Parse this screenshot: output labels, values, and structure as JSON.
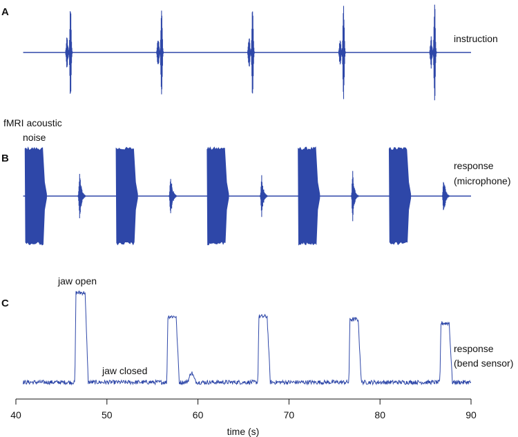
{
  "chart_data": [
    {
      "panel": "A",
      "type": "line",
      "annotations": [
        "instruction"
      ],
      "bursts": [
        {
          "t": 46.0,
          "amplitude": 1.0
        },
        {
          "t": 56.0,
          "amplitude": 1.0
        },
        {
          "t": 66.0,
          "amplitude": 1.0
        },
        {
          "t": 76.0,
          "amplitude": 1.0
        },
        {
          "t": 86.0,
          "amplitude": 1.0
        }
      ],
      "color": "#2e47a8"
    },
    {
      "panel": "B",
      "type": "line",
      "annotations": [
        "fMRI acoustic",
        "noise",
        "response",
        "(microphone)"
      ],
      "noise_blocks": [
        {
          "start": 41.0,
          "end": 43.0
        },
        {
          "start": 51.0,
          "end": 53.0
        },
        {
          "start": 61.0,
          "end": 63.0
        },
        {
          "start": 71.0,
          "end": 73.0
        },
        {
          "start": 81.0,
          "end": 83.0
        }
      ],
      "responses": [
        {
          "t": 47.0,
          "amplitude": 0.55
        },
        {
          "t": 57.0,
          "amplitude": 0.5
        },
        {
          "t": 67.0,
          "amplitude": 0.45
        },
        {
          "t": 77.0,
          "amplitude": 0.55
        },
        {
          "t": 87.0,
          "amplitude": 0.45
        }
      ],
      "color": "#2e47a8"
    },
    {
      "panel": "C",
      "type": "line",
      "annotations": [
        "jaw open",
        "jaw closed",
        "response",
        "(bend sensor)"
      ],
      "x_start": 40.8,
      "x_end": 90.0,
      "baseline": 0.06,
      "pulses": [
        {
          "start": 46.6,
          "end": 47.6,
          "height": 1.0
        },
        {
          "start": 56.7,
          "end": 57.6,
          "height": 0.75
        },
        {
          "start": 66.7,
          "end": 67.6,
          "height": 0.75
        },
        {
          "start": 76.7,
          "end": 77.6,
          "height": 0.72
        },
        {
          "start": 86.7,
          "end": 87.6,
          "height": 0.68
        }
      ],
      "color": "#2e47a8"
    }
  ],
  "axis": {
    "xlabel": "time (s)",
    "xlim": [
      40,
      90
    ],
    "ticks": [
      "40",
      "50",
      "60",
      "70",
      "80",
      "90"
    ]
  },
  "panel_letters": [
    "A",
    "B",
    "C"
  ]
}
